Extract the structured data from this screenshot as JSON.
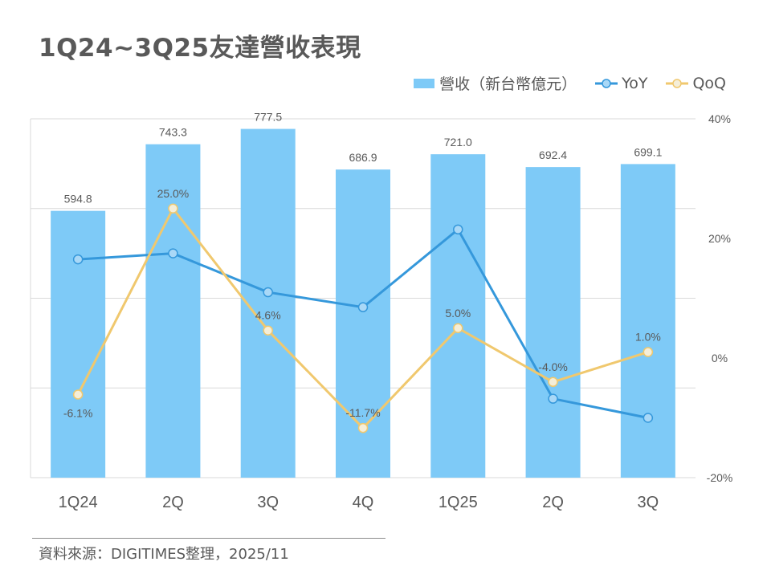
{
  "title": "1Q24~3Q25友達營收表現",
  "source": "資料來源：DIGITIMES整理，2025/11",
  "colors": {
    "bar": "#7ecaf7",
    "yoy": "#3598db",
    "qoq": "#f0c86e",
    "qoq_marker_fill": "#f5eed8",
    "yoy_marker_fill": "#a9d8f7",
    "text": "#595959",
    "grid": "#d9d9d9"
  },
  "chart_data": {
    "type": "bar",
    "title": "1Q24~3Q25友達營收表現",
    "categories": [
      "1Q24",
      "2Q",
      "3Q",
      "4Q",
      "1Q25",
      "2Q",
      "3Q"
    ],
    "series": [
      {
        "name": "營收（新台幣億元）",
        "type": "bar",
        "axis": "left",
        "values": [
          594.8,
          743.3,
          777.5,
          686.9,
          721.0,
          692.4,
          699.1
        ],
        "labels": [
          "594.8",
          "743.3",
          "777.5",
          "686.9",
          "721.0",
          "692.4",
          "699.1"
        ]
      },
      {
        "name": "YoY",
        "type": "line",
        "axis": "right",
        "values": [
          16.5,
          17.5,
          11.0,
          8.5,
          21.5,
          -6.8,
          -10.0
        ]
      },
      {
        "name": "QoQ",
        "type": "line",
        "axis": "right",
        "values": [
          -6.1,
          25.0,
          4.6,
          -11.7,
          5.0,
          -4.0,
          1.0
        ],
        "labels": [
          "-6.1%",
          "25.0%",
          "4.6%",
          "-11.7%",
          "5.0%",
          "-4.0%",
          "1.0%"
        ]
      }
    ],
    "y_left_range": [
      0,
      800
    ],
    "y_right_range": [
      -20,
      40
    ],
    "y_right_ticks": [
      "40%",
      "20%",
      "0%",
      "-20%"
    ],
    "grid": true,
    "legend": "top-right"
  }
}
